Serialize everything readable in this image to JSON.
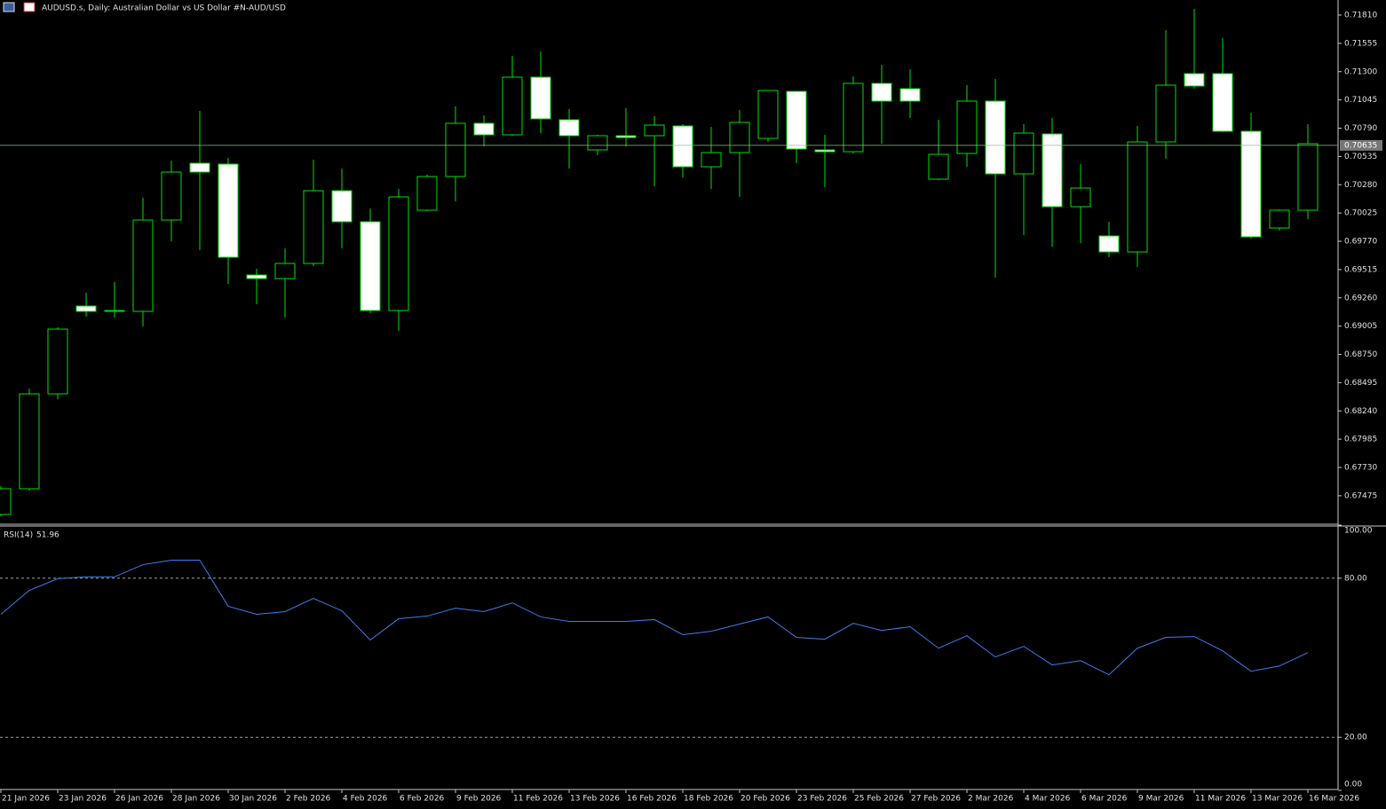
{
  "chart_data": {
    "type": "candlestick",
    "title": "AUDUSD.s, Daily:  Australian Dollar vs US Dollar #N-AUD/USD",
    "categories": [
      "21 Jan 2026",
      null,
      "23 Jan 2026",
      null,
      "26 Jan 2026",
      null,
      "28 Jan 2026",
      null,
      "30 Jan 2026",
      null,
      "2 Feb 2026",
      null,
      "4 Feb 2026",
      null,
      "6 Feb 2026",
      null,
      "9 Feb 2026",
      null,
      "11 Feb 2026",
      null,
      "13 Feb 2026",
      null,
      "16 Feb 2026",
      null,
      "18 Feb 2026",
      null,
      "20 Feb 2026",
      null,
      "23 Feb 2026",
      null,
      "25 Feb 2026",
      null,
      "27 Feb 2026",
      null,
      "2 Mar 2026",
      null,
      "4 Mar 2026",
      null,
      "6 Mar 2026",
      null,
      "9 Mar 2026",
      null,
      "11 Mar 2026",
      null,
      "13 Mar 2026",
      null,
      "16 Mar 2026"
    ],
    "open": [
      0.67306,
      0.67538,
      0.68394,
      0.69186,
      0.69138,
      0.69138,
      0.69962,
      0.70474,
      0.70466,
      0.69466,
      0.69434,
      0.6957,
      0.70226,
      0.69946,
      0.69146,
      0.7005,
      0.70354,
      0.70834,
      0.7073,
      0.7125,
      0.70866,
      0.70594,
      0.70722,
      0.70722,
      0.7081,
      0.70442,
      0.7057,
      0.70698,
      0.71122,
      0.70594,
      0.70578,
      0.71194,
      0.71146,
      0.7033,
      0.70562,
      0.71034,
      0.70378,
      0.70738,
      0.70082,
      0.69818,
      0.69674,
      0.70666,
      0.71282,
      0.71282,
      0.70762,
      0.6989,
      0.7005
    ],
    "high": [
      0.67562,
      0.68442,
      0.68994,
      0.69306,
      0.69402,
      0.70162,
      0.70498,
      0.70946,
      0.70522,
      0.69522,
      0.69706,
      0.70506,
      0.70426,
      0.70066,
      0.70242,
      0.7037,
      0.70986,
      0.70906,
      0.71442,
      0.71482,
      0.70962,
      0.7073,
      0.7097,
      0.70898,
      0.70826,
      0.70802,
      0.70954,
      0.7113,
      0.71122,
      0.7073,
      0.71258,
      0.71362,
      0.71322,
      0.70866,
      0.71178,
      0.71234,
      0.70826,
      0.70882,
      0.70466,
      0.69946,
      0.7081,
      0.71674,
      0.71866,
      0.71602,
      0.7093,
      0.70058,
      0.70826
    ],
    "low": [
      0.6729,
      0.67522,
      0.68346,
      0.6909,
      0.69082,
      0.69002,
      0.6977,
      0.6969,
      0.69386,
      0.69202,
      0.69082,
      0.69546,
      0.69706,
      0.69122,
      0.68962,
      0.70042,
      0.7013,
      0.70626,
      0.70722,
      0.70746,
      0.70426,
      0.70546,
      0.70626,
      0.70266,
      0.70346,
      0.70242,
      0.7017,
      0.70666,
      0.70474,
      0.70258,
      0.70562,
      0.7065,
      0.70882,
      0.70322,
      0.70442,
      0.69442,
      0.69826,
      0.69722,
      0.69754,
      0.69626,
      0.69538,
      0.70514,
      0.71146,
      0.70754,
      0.69794,
      0.69866,
      0.6997
    ],
    "close": [
      0.67538,
      0.68394,
      0.68978,
      0.69138,
      0.69146,
      0.69962,
      0.70394,
      0.70394,
      0.69626,
      0.69434,
      0.6957,
      0.70226,
      0.69946,
      0.69146,
      0.7017,
      0.70354,
      0.70834,
      0.7073,
      0.7125,
      0.70874,
      0.70722,
      0.70722,
      0.70706,
      0.70818,
      0.70442,
      0.7057,
      0.70842,
      0.7113,
      0.70602,
      0.70578,
      0.71194,
      0.71034,
      0.71034,
      0.70554,
      0.71034,
      0.70378,
      0.70746,
      0.70082,
      0.7025,
      0.69674,
      0.70666,
      0.71178,
      0.7117,
      0.70762,
      0.6981,
      0.7005,
      0.7065
    ],
    "up_color": "#000000",
    "down_color": "#ffffff",
    "outline_color": "#00e000",
    "last_price": 0.70635,
    "ylim": [
      0.67226,
      0.71946
    ],
    "yticks": [
      {
        "value": 0.7181,
        "label": "0.71810"
      },
      0.71555,
      {
        "value": 0.713,
        "label": "0.71300"
      },
      0.71045,
      {
        "value": 0.7079,
        "label": "0.70790"
      },
      0.70535,
      {
        "value": 0.7028,
        "label": "0.70280"
      },
      0.70025,
      {
        "value": 0.6977,
        "label": "0.69770"
      },
      0.69515,
      {
        "value": 0.6926,
        "label": "0.69260"
      },
      0.69005,
      {
        "value": 0.6875,
        "label": "0.68750"
      },
      0.68495,
      {
        "value": 0.6824,
        "label": "0.68240"
      },
      0.67985,
      {
        "value": 0.6773,
        "label": "0.67730"
      },
      0.67475
    ],
    "rsi": {
      "name": "RSI(14)",
      "color": "#3a7ff0",
      "values": [
        66.4,
        75.4,
        79.8,
        80.5,
        80.5,
        85.1,
        86.8,
        86.8,
        69.4,
        66.4,
        67.4,
        72.4,
        67.7,
        56.7,
        64.7,
        65.7,
        68.7,
        67.4,
        70.7,
        65.4,
        63.7,
        63.7,
        63.7,
        64.4,
        58.7,
        60.0,
        62.7,
        65.4,
        57.7,
        57.0,
        63.0,
        60.3,
        61.7,
        53.6,
        58.3,
        50.3,
        54.3,
        47.3,
        48.9,
        43.6,
        53.6,
        57.7,
        58.0,
        52.6,
        44.9,
        46.9,
        51.96
      ],
      "ylim": [
        0,
        100
      ],
      "yticks": [
        {
          "value": 100,
          "label": "100.00"
        },
        {
          "value": 80,
          "label": "80.00"
        },
        {
          "value": 20,
          "label": "20.00"
        },
        {
          "value": 0,
          "label": "0.00"
        }
      ],
      "levels": [
        80,
        20
      ]
    }
  }
}
